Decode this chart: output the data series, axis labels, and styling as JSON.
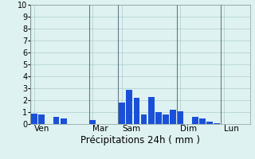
{
  "title": "",
  "xlabel": "Précipitations 24h ( mm )",
  "ylabel": "",
  "background_color": "#dff2f2",
  "bar_color": "#1a50d8",
  "grid_color": "#aacccc",
  "day_line_color": "#667788",
  "ylim": [
    0,
    10
  ],
  "yticks": [
    0,
    1,
    2,
    3,
    4,
    5,
    6,
    7,
    8,
    9,
    10
  ],
  "day_labels": [
    "Ven",
    "Mar",
    "Sam",
    "Dim",
    "Lun"
  ],
  "day_tick_positions": [
    0,
    8,
    12,
    20,
    26
  ],
  "num_bars": 30,
  "bar_values": [
    0.9,
    0.8,
    0,
    0.6,
    0.5,
    0,
    0,
    0,
    0.35,
    0,
    0,
    0,
    1.8,
    2.9,
    2.2,
    0.8,
    2.3,
    1.0,
    0.8,
    1.2,
    1.1,
    0,
    0.6,
    0.45,
    0.2,
    0.1,
    0,
    0,
    0,
    0
  ],
  "xlabel_fontsize": 8.5,
  "tick_fontsize": 7,
  "day_label_fontsize": 7.5
}
